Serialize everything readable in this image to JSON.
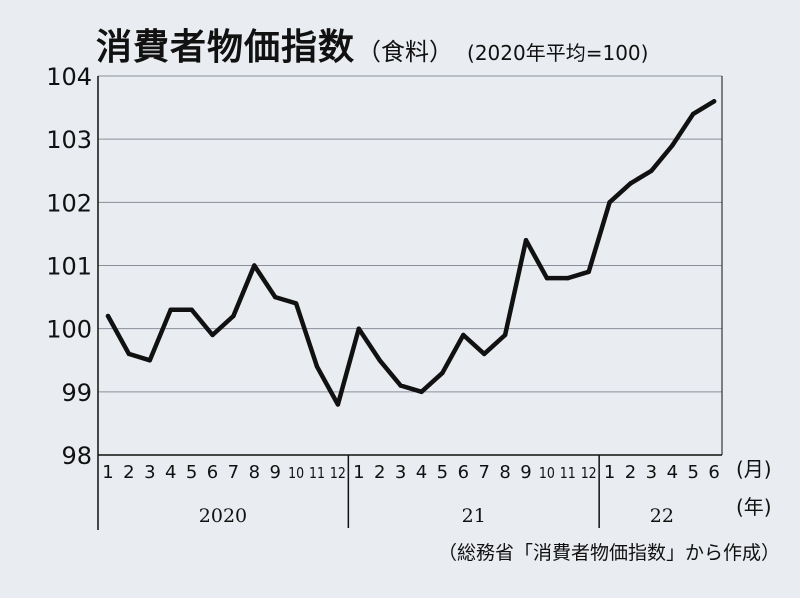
{
  "title": {
    "main": "消費者物価指数",
    "sub": "（食料）",
    "base": "(2020年平均=100)"
  },
  "source": "（総務省「消費者物価指数」から作成）",
  "chart_data": {
    "type": "line",
    "ylim": [
      98,
      104
    ],
    "yticks": [
      "98",
      "99",
      "100",
      "101",
      "102",
      "103",
      "104"
    ],
    "x_month_labels": [
      "1",
      "2",
      "3",
      "4",
      "5",
      "6",
      "7",
      "8",
      "9",
      "10",
      "11",
      "12",
      "1",
      "2",
      "3",
      "4",
      "5",
      "6",
      "7",
      "8",
      "9",
      "10",
      "11",
      "12",
      "1",
      "2",
      "3",
      "4",
      "5",
      "6"
    ],
    "year_groups": [
      {
        "label": "2020",
        "months": 12
      },
      {
        "label": "21",
        "months": 12
      },
      {
        "label": "22",
        "months": 6
      }
    ],
    "month_unit": "(月)",
    "year_unit": "(年)",
    "grid": true,
    "series": [
      {
        "values": [
          100.2,
          99.6,
          99.5,
          100.3,
          100.3,
          99.9,
          100.2,
          101.0,
          100.5,
          100.4,
          99.4,
          98.8,
          100.0,
          99.5,
          99.1,
          99.0,
          99.3,
          99.9,
          99.6,
          99.9,
          101.4,
          100.8,
          100.8,
          100.9,
          102.0,
          102.3,
          102.5,
          102.9,
          103.4,
          103.6
        ]
      }
    ]
  }
}
